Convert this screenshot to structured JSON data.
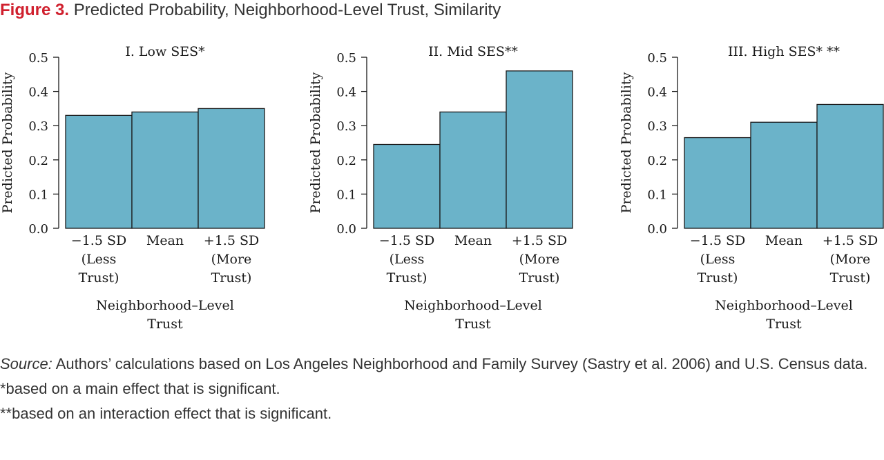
{
  "figure": {
    "label": "Figure 3.",
    "title": "Predicted Probability, Neighborhood-Level Trust, Similarity"
  },
  "colors": {
    "bar_fill": "#6bb3c9",
    "bar_stroke": "#1a1a1a",
    "label_red": "#d0202e"
  },
  "chart_data": [
    {
      "type": "bar",
      "title": "I. Low SES*",
      "ylabel": "Predicted Probability",
      "xlabel": [
        "Neighborhood–Level",
        "Trust"
      ],
      "categories": [
        [
          "−1.5 SD",
          "(Less",
          "Trust)"
        ],
        [
          "Mean"
        ],
        [
          "+1.5 SD",
          "(More",
          "Trust)"
        ]
      ],
      "values": [
        0.33,
        0.34,
        0.35
      ],
      "ylim": [
        0,
        0.5
      ],
      "yticks": [
        "0.0",
        "0.1",
        "0.2",
        "0.3",
        "0.4",
        "0.5"
      ],
      "grid": false
    },
    {
      "type": "bar",
      "title": "II. Mid SES**",
      "ylabel": "Predicted Probability",
      "xlabel": [
        "Neighborhood–Level",
        "Trust"
      ],
      "categories": [
        [
          "−1.5 SD",
          "(Less",
          "Trust)"
        ],
        [
          "Mean"
        ],
        [
          "+1.5 SD",
          "(More",
          "Trust)"
        ]
      ],
      "values": [
        0.245,
        0.34,
        0.46
      ],
      "ylim": [
        0,
        0.5
      ],
      "yticks": [
        "0.0",
        "0.1",
        "0.2",
        "0.3",
        "0.4",
        "0.5"
      ],
      "grid": false
    },
    {
      "type": "bar",
      "title": "III. High SES* **",
      "ylabel": "Predicted Probability",
      "xlabel": [
        "Neighborhood–Level",
        "Trust"
      ],
      "categories": [
        [
          "−1.5 SD",
          "(Less",
          "Trust)"
        ],
        [
          "Mean"
        ],
        [
          "+1.5 SD",
          "(More",
          "Trust)"
        ]
      ],
      "values": [
        0.265,
        0.31,
        0.362
      ],
      "ylim": [
        0,
        0.5
      ],
      "yticks": [
        "0.0",
        "0.1",
        "0.2",
        "0.3",
        "0.4",
        "0.5"
      ],
      "grid": false
    }
  ],
  "notes": {
    "source_label": "Source:",
    "source_text": " Authors’ calculations based on Los Angeles Neighborhood and Family Survey (Sastry et al. 2006) and U.S. Census data.",
    "note1": "*based on a main effect that is significant.",
    "note2": "**based on an interaction effect that is significant."
  }
}
